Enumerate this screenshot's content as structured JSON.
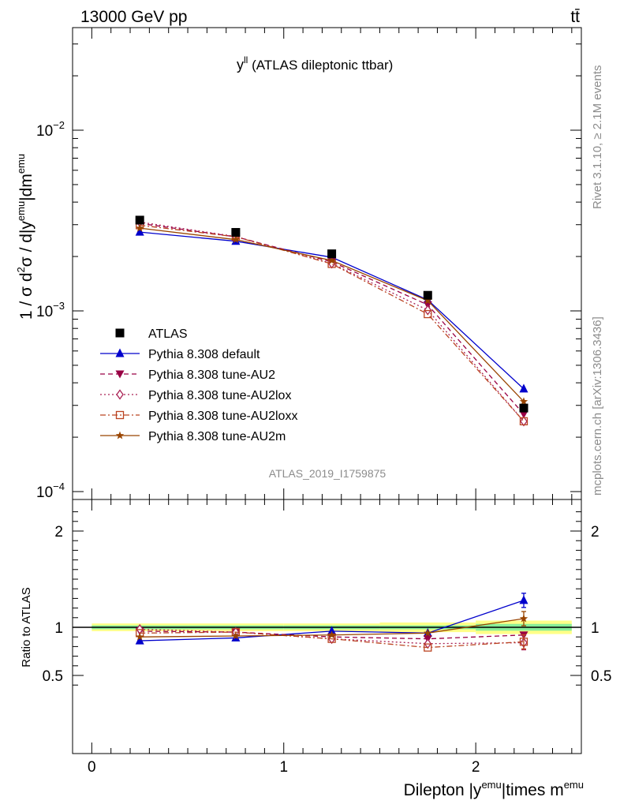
{
  "header": {
    "left": "13000 GeV pp",
    "right": "tt̄"
  },
  "plot_label": {
    "var": "y",
    "var_sup": "ll",
    "rest": " (ATLAS dileptonic ttbar)"
  },
  "analysis_id": "ATLAS_2019_I1759875",
  "side_text": {
    "rivet": "Rivet 3.1.10, ≥ 2.1M events",
    "mcplots": "mcplots.cern.ch [arXiv:1306.3436]"
  },
  "colors": {
    "ATLAS": "#000000",
    "default": "#0000cc",
    "AU2": "#990044",
    "AU2lox": "#aa2255",
    "AU2loxx": "#bb4422",
    "AU2m": "#994400",
    "band_green": "#88ee99",
    "band_yellow": "#ffff88"
  },
  "chart_data": [
    {
      "type": "line",
      "ylog": true,
      "xlim": [
        -0.1,
        2.55
      ],
      "ylim": [
        0.0001,
        0.04
      ],
      "yticks": [
        0.0001,
        0.001,
        0.01
      ],
      "yticks_labels": [
        {
          "base": "10",
          "exp": "−4"
        },
        {
          "base": "10",
          "exp": "−3"
        },
        {
          "base": "10",
          "exp": "−2"
        }
      ],
      "ylabel": {
        "pre": "1 / σ  d",
        "sup1": "2",
        "mid": "σ / d|y",
        "sup2": "emu",
        "mid2": "|dm",
        "sup3": "emu"
      },
      "x": [
        0.25,
        0.75,
        1.25,
        1.75,
        2.25
      ],
      "series": [
        {
          "name": "ATLAS",
          "key": "ATLAS",
          "values": [
            0.00318,
            0.00272,
            0.00207,
            0.00122,
            0.00029
          ],
          "marker": "square",
          "dash": "none"
        },
        {
          "name": "Pythia 8.308 default",
          "key": "default",
          "values": [
            0.00273,
            0.00243,
            0.00198,
            0.00115,
            0.00037
          ],
          "marker": "triangle-up",
          "dash": "solid"
        },
        {
          "name": "Pythia 8.308 tune-AU2",
          "key": "AU2",
          "values": [
            0.00305,
            0.00257,
            0.00187,
            0.00108,
            0.000268
          ],
          "marker": "triangle-down",
          "dash": "dash"
        },
        {
          "name": "Pythia 8.308 tune-AU2lox",
          "key": "AU2lox",
          "values": [
            0.0031,
            0.00258,
            0.00183,
            0.00101,
            0.000245
          ],
          "marker": "diamond",
          "dash": "dot"
        },
        {
          "name": "Pythia 8.308 tune-AU2loxx",
          "key": "AU2loxx",
          "values": [
            0.00298,
            0.00257,
            0.00182,
            0.00096,
            0.000245
          ],
          "marker": "open-square",
          "dash": "dashdot"
        },
        {
          "name": "Pythia 8.308 tune-AU2m",
          "key": "AU2m",
          "values": [
            0.00287,
            0.00248,
            0.0019,
            0.00114,
            0.000315
          ],
          "marker": "star",
          "dash": "solid"
        }
      ]
    },
    {
      "type": "line",
      "ylabel": "Ratio to ATLAS",
      "ylim": [
        0.35,
        2.35
      ],
      "yticks": [
        0.5,
        1,
        2
      ],
      "yticks_labels": [
        "0.5",
        "1",
        "2"
      ],
      "xticks": [
        0,
        1,
        2
      ],
      "xticks_labels": [
        "0",
        "1",
        "2"
      ],
      "xlabel": {
        "pre": "Dilepton |y",
        "sup1": "emu",
        "mid": "|times m",
        "sup2": "emu"
      },
      "bins": [
        [
          0,
          0.5
        ],
        [
          0.5,
          1.0
        ],
        [
          1.0,
          1.5
        ],
        [
          1.5,
          2.0
        ],
        [
          2.0,
          2.5
        ]
      ],
      "band_stat": [
        0.02,
        0.02,
        0.02,
        0.02,
        0.035
      ],
      "band_total": [
        0.04,
        0.04,
        0.04,
        0.05,
        0.07
      ],
      "x": [
        0.25,
        0.75,
        1.25,
        1.75,
        2.25
      ],
      "series": [
        {
          "key": "default",
          "values": [
            0.86,
            0.89,
            0.96,
            0.94,
            1.28
          ]
        },
        {
          "key": "AU2",
          "values": [
            0.96,
            0.95,
            0.9,
            0.88,
            0.92
          ]
        },
        {
          "key": "AU2lox",
          "values": [
            0.98,
            0.95,
            0.88,
            0.83,
            0.84
          ]
        },
        {
          "key": "AU2loxx",
          "values": [
            0.94,
            0.95,
            0.88,
            0.79,
            0.85
          ]
        },
        {
          "key": "AU2m",
          "values": [
            0.9,
            0.91,
            0.92,
            0.94,
            1.09
          ]
        }
      ]
    }
  ]
}
